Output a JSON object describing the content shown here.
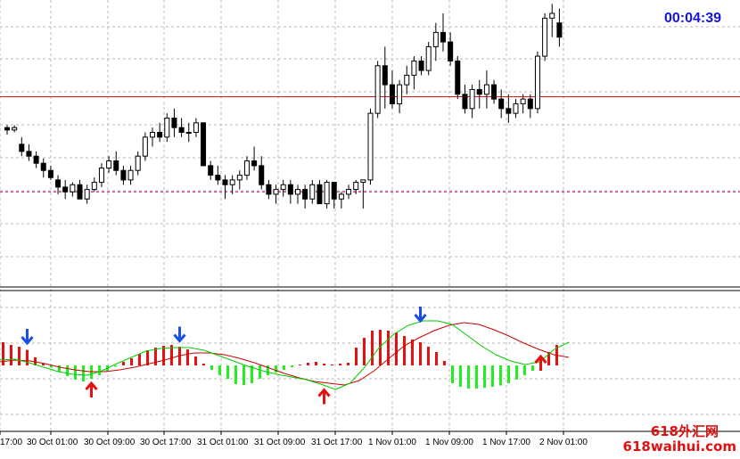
{
  "timer": "00:04:39",
  "watermark": {
    "line1": "618外汇网",
    "line2": "618waihui.com"
  },
  "colors": {
    "bull_body": "#ffffff",
    "bear_body": "#000000",
    "wick": "#000000",
    "hist_pos": "#e61010",
    "hist_neg": "#22ee22",
    "signal_red": "#cc0000",
    "signal_green": "#00cc00",
    "arrow_down": "#1a4fe6",
    "arrow_up": "#e61010",
    "hline": "#e01010",
    "dotted_hline": "#c8007a",
    "grid": "#b8b8b8"
  },
  "chart_data": [
    {
      "type": "candlestick",
      "title": "",
      "x_ticks": [
        "17:00",
        "30 Oct 01:00",
        "30 Oct 09:00",
        "30 Oct 17:00",
        "31 Oct 01:00",
        "31 Oct 09:00",
        "31 Oct 17:00",
        "1 Nov 01:00",
        "1 Nov 09:00",
        "1 Nov 17:00",
        "2 Nov 01:00"
      ],
      "grid": true,
      "y_range": [
        0,
        100
      ],
      "hlines": [
        {
          "y": 65,
          "style": "solid"
        },
        {
          "y": 25,
          "style": "dotted"
        }
      ],
      "candles": [
        [
          52,
          53,
          49,
          51
        ],
        [
          51,
          53,
          50,
          52
        ],
        [
          45,
          48,
          40,
          42
        ],
        [
          42,
          45,
          38,
          40
        ],
        [
          40,
          42,
          35,
          37
        ],
        [
          37,
          39,
          31,
          34
        ],
        [
          34,
          36,
          30,
          31
        ],
        [
          30,
          32,
          24,
          27
        ],
        [
          27,
          30,
          22,
          25
        ],
        [
          25,
          29,
          23,
          28
        ],
        [
          28,
          30,
          22,
          22
        ],
        [
          22,
          28,
          20,
          26
        ],
        [
          26,
          31,
          25,
          29
        ],
        [
          29,
          37,
          27,
          35
        ],
        [
          35,
          40,
          33,
          38
        ],
        [
          38,
          42,
          32,
          34
        ],
        [
          34,
          36,
          28,
          30
        ],
        [
          30,
          36,
          28,
          34
        ],
        [
          34,
          42,
          32,
          40
        ],
        [
          40,
          50,
          38,
          48
        ],
        [
          48,
          52,
          44,
          50
        ],
        [
          50,
          54,
          46,
          48
        ],
        [
          48,
          58,
          46,
          56
        ],
        [
          56,
          60,
          48,
          52
        ],
        [
          52,
          56,
          48,
          50
        ],
        [
          50,
          54,
          46,
          50
        ],
        [
          50,
          56,
          48,
          54
        ],
        [
          54,
          54,
          36,
          36
        ],
        [
          36,
          38,
          30,
          32
        ],
        [
          32,
          36,
          28,
          30
        ],
        [
          30,
          32,
          22,
          28
        ],
        [
          28,
          32,
          24,
          30
        ],
        [
          30,
          34,
          26,
          32
        ],
        [
          32,
          40,
          30,
          38
        ],
        [
          38,
          44,
          34,
          36
        ],
        [
          36,
          40,
          26,
          28
        ],
        [
          28,
          30,
          22,
          24
        ],
        [
          24,
          28,
          20,
          26
        ],
        [
          26,
          30,
          23,
          28
        ],
        [
          28,
          30,
          20,
          24
        ],
        [
          24,
          28,
          20,
          26
        ],
        [
          26,
          28,
          18,
          22
        ],
        [
          22,
          30,
          20,
          28
        ],
        [
          28,
          30,
          20,
          20
        ],
        [
          20,
          30,
          18,
          29
        ],
        [
          29,
          29,
          18,
          22
        ],
        [
          22,
          25,
          18,
          24
        ],
        [
          24,
          28,
          22,
          26
        ],
        [
          26,
          30,
          24,
          29
        ],
        [
          29,
          29,
          18,
          30
        ],
        [
          30,
          60,
          28,
          58
        ],
        [
          58,
          80,
          56,
          78
        ],
        [
          78,
          86,
          60,
          70
        ],
        [
          70,
          76,
          60,
          62
        ],
        [
          62,
          72,
          58,
          70
        ],
        [
          70,
          78,
          66,
          74
        ],
        [
          74,
          82,
          68,
          80
        ],
        [
          80,
          82,
          74,
          76
        ],
        [
          76,
          88,
          74,
          86
        ],
        [
          86,
          96,
          80,
          92
        ],
        [
          92,
          100,
          84,
          88
        ],
        [
          88,
          92,
          78,
          80
        ],
        [
          80,
          82,
          64,
          66
        ],
        [
          66,
          70,
          58,
          60
        ],
        [
          60,
          70,
          56,
          68
        ],
        [
          68,
          72,
          60,
          66
        ],
        [
          66,
          76,
          60,
          70
        ],
        [
          70,
          72,
          62,
          64
        ],
        [
          64,
          68,
          56,
          60
        ],
        [
          60,
          66,
          54,
          58
        ],
        [
          58,
          64,
          56,
          62
        ],
        [
          62,
          66,
          58,
          64
        ],
        [
          64,
          66,
          56,
          60
        ],
        [
          60,
          84,
          58,
          82
        ],
        [
          82,
          100,
          80,
          98
        ],
        [
          98,
          104,
          90,
          100
        ],
        [
          96,
          102,
          86,
          90
        ]
      ]
    },
    {
      "type": "bar",
      "title": "",
      "y_range": [
        -1,
        1
      ],
      "histogram": [
        0.52,
        0.46,
        0.42,
        0.35,
        0.18,
        0.04,
        -0.05,
        -0.14,
        -0.24,
        -0.32,
        -0.36,
        -0.3,
        -0.22,
        -0.12,
        -0.03,
        0.08,
        0.16,
        0.26,
        0.34,
        0.4,
        0.44,
        0.46,
        0.42,
        0.36,
        0.2,
        0.04,
        -0.1,
        -0.22,
        -0.3,
        -0.42,
        -0.44,
        -0.4,
        -0.3,
        -0.22,
        -0.16,
        -0.1,
        -0.04,
        0.02,
        0.06,
        0.08,
        0.04,
        0.02,
        0.04,
        0.06,
        0.4,
        0.62,
        0.78,
        0.8,
        0.78,
        0.74,
        0.66,
        0.58,
        0.52,
        0.42,
        0.3,
        0.1,
        -0.4,
        -0.48,
        -0.52,
        -0.52,
        -0.5,
        -0.48,
        -0.45,
        -0.4,
        -0.32,
        -0.22,
        -0.12,
        0.1,
        0.3,
        0.46
      ],
      "signal_red": [
        0.08,
        0.12,
        0.1,
        0.04,
        -0.04,
        -0.1,
        -0.14,
        -0.14,
        -0.1,
        -0.04,
        0.04,
        0.12,
        0.22,
        0.28,
        0.28,
        0.24,
        0.16,
        0.06,
        -0.06,
        -0.18,
        -0.28,
        -0.36,
        -0.4,
        -0.44,
        -0.34,
        -0.12,
        0.16,
        0.44,
        0.62,
        0.78,
        0.9,
        0.96,
        0.92,
        0.8,
        0.66,
        0.5,
        0.36,
        0.24,
        0.18
      ],
      "signal_green": [
        0.12,
        0.14,
        0.06,
        -0.04,
        -0.14,
        -0.2,
        -0.22,
        -0.12,
        0.04,
        0.18,
        0.32,
        0.38,
        0.4,
        0.4,
        0.34,
        0.22,
        0.1,
        -0.02,
        -0.12,
        -0.2,
        -0.26,
        -0.32,
        -0.42,
        -0.54,
        -0.4,
        -0.04,
        0.4,
        0.7,
        0.9,
        1.0,
        1.0,
        0.92,
        0.68,
        0.44,
        0.24,
        0.1,
        0.02,
        0.08,
        0.36,
        0.52
      ],
      "arrows": [
        {
          "bar": 3,
          "dir": "down",
          "value": 0.5
        },
        {
          "bar": 11,
          "dir": "up",
          "value": -0.4
        },
        {
          "bar": 22,
          "dir": "down",
          "value": 0.55
        },
        {
          "bar": 40,
          "dir": "up",
          "value": -0.55
        },
        {
          "bar": 52,
          "dir": "down",
          "value": 1.0
        },
        {
          "bar": 67,
          "dir": "up",
          "value": 0.2
        }
      ]
    }
  ]
}
